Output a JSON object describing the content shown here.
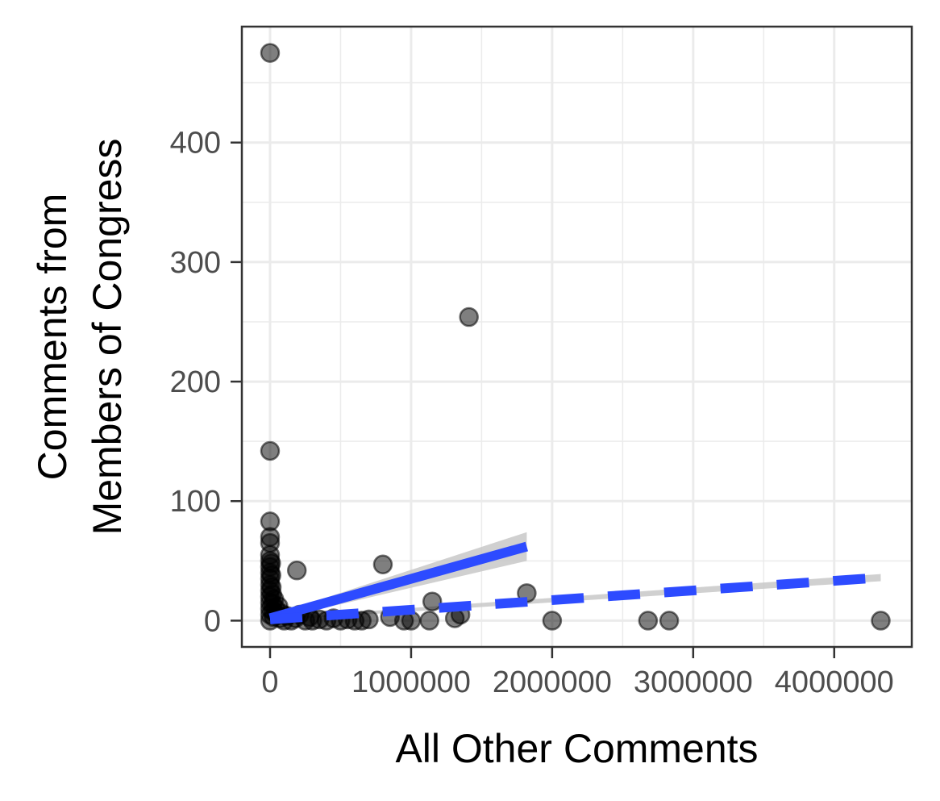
{
  "chart_data": {
    "type": "scatter",
    "title": "",
    "xlabel": "All Other Comments",
    "ylabel_lines": [
      "Comments from",
      "Members of Congress"
    ],
    "xlim": [
      -200000,
      4550000
    ],
    "ylim": [
      -22,
      497
    ],
    "x_ticks": [
      0,
      1000000,
      2000000,
      3000000,
      4000000
    ],
    "x_tick_labels": [
      "0",
      "1000000",
      "2000000",
      "3000000",
      "4000000"
    ],
    "y_ticks": [
      0,
      100,
      200,
      300,
      400
    ],
    "y_tick_labels": [
      "0",
      "100",
      "200",
      "300",
      "400"
    ],
    "grid": true,
    "points": [
      {
        "x": 0,
        "y": 475
      },
      {
        "x": 0,
        "y": 142
      },
      {
        "x": 0,
        "y": 83
      },
      {
        "x": 0,
        "y": 70
      },
      {
        "x": 0,
        "y": 65
      },
      {
        "x": 0,
        "y": 55
      },
      {
        "x": 0,
        "y": 50
      },
      {
        "x": 0,
        "y": 45
      },
      {
        "x": 0,
        "y": 40
      },
      {
        "x": 0,
        "y": 35
      },
      {
        "x": 0,
        "y": 30
      },
      {
        "x": 0,
        "y": 25
      },
      {
        "x": 0,
        "y": 20
      },
      {
        "x": 0,
        "y": 15
      },
      {
        "x": 0,
        "y": 10
      },
      {
        "x": 0,
        "y": 5
      },
      {
        "x": 0,
        "y": 0
      },
      {
        "x": 8000,
        "y": 48
      },
      {
        "x": 10000,
        "y": 38
      },
      {
        "x": 12000,
        "y": 28
      },
      {
        "x": 15000,
        "y": 22
      },
      {
        "x": 18000,
        "y": 14
      },
      {
        "x": 20000,
        "y": 8
      },
      {
        "x": 25000,
        "y": 3
      },
      {
        "x": 30000,
        "y": 18
      },
      {
        "x": 40000,
        "y": 10
      },
      {
        "x": 50000,
        "y": 5
      },
      {
        "x": 60000,
        "y": 12
      },
      {
        "x": 70000,
        "y": 2
      },
      {
        "x": 80000,
        "y": 6
      },
      {
        "x": 100000,
        "y": 0
      },
      {
        "x": 120000,
        "y": 4
      },
      {
        "x": 150000,
        "y": 0
      },
      {
        "x": 180000,
        "y": 2
      },
      {
        "x": 190000,
        "y": 42
      },
      {
        "x": 210000,
        "y": 5
      },
      {
        "x": 250000,
        "y": 0
      },
      {
        "x": 280000,
        "y": 3
      },
      {
        "x": 300000,
        "y": 0
      },
      {
        "x": 350000,
        "y": 1
      },
      {
        "x": 400000,
        "y": 0
      },
      {
        "x": 450000,
        "y": 2
      },
      {
        "x": 500000,
        "y": 0
      },
      {
        "x": 550000,
        "y": 1
      },
      {
        "x": 600000,
        "y": 0
      },
      {
        "x": 650000,
        "y": 0
      },
      {
        "x": 700000,
        "y": 1
      },
      {
        "x": 800000,
        "y": 47
      },
      {
        "x": 850000,
        "y": 3
      },
      {
        "x": 950000,
        "y": 0
      },
      {
        "x": 1000000,
        "y": 0
      },
      {
        "x": 1130000,
        "y": 0
      },
      {
        "x": 1150000,
        "y": 16
      },
      {
        "x": 1310000,
        "y": 2
      },
      {
        "x": 1350000,
        "y": 5
      },
      {
        "x": 1410000,
        "y": 254
      },
      {
        "x": 1820000,
        "y": 23
      },
      {
        "x": 2000000,
        "y": 0
      },
      {
        "x": 2680000,
        "y": 0
      },
      {
        "x": 2830000,
        "y": 0
      },
      {
        "x": 4330000,
        "y": 0
      }
    ],
    "fits": [
      {
        "style": "solid",
        "color": "#2d4bff",
        "x": [
          0,
          1820000
        ],
        "y": [
          2,
          62
        ],
        "band": [
          [
            0,
            0,
            4
          ],
          [
            1820000,
            50,
            74
          ]
        ]
      },
      {
        "style": "dashed",
        "color": "#2d4bff",
        "x": [
          0,
          4330000
        ],
        "y": [
          1,
          36
        ],
        "band": [
          [
            0,
            0,
            2
          ],
          [
            4330000,
            33,
            39
          ]
        ]
      }
    ],
    "colors": {
      "point": "#000000",
      "band": "#c8c8c8",
      "grid": "#ebebeb",
      "panel_border": "#333333"
    }
  }
}
